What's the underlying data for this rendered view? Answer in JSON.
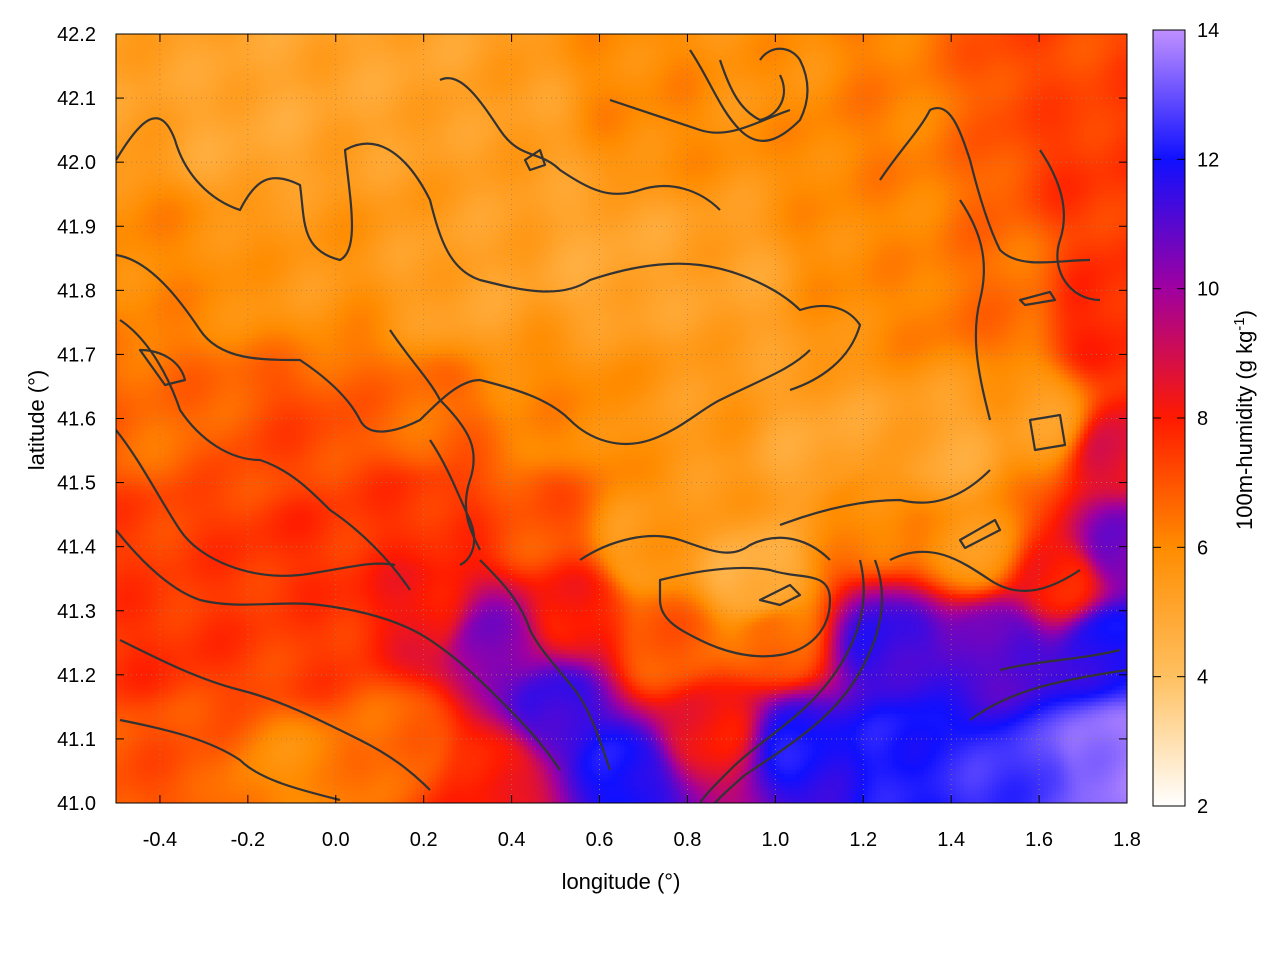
{
  "chart_data": {
    "type": "heatmap",
    "title": "",
    "xlabel": "longitude (°)",
    "ylabel": "latitude (°)",
    "colorbar_label": "100m-humidity (g kg",
    "colorbar_label_superscript": "-1",
    "colorbar_label_suffix": ")",
    "xlim": [
      -0.5,
      1.8
    ],
    "ylim": [
      41.0,
      42.2
    ],
    "x_ticks": [
      "-0.4",
      "-0.2",
      "0.0",
      "0.2",
      "0.4",
      "0.6",
      "0.8",
      "1.0",
      "1.2",
      "1.4",
      "1.6",
      "1.8"
    ],
    "x_tick_values": [
      -0.4,
      -0.2,
      0.0,
      0.2,
      0.4,
      0.6,
      0.8,
      1.0,
      1.2,
      1.4,
      1.6,
      1.8
    ],
    "y_ticks": [
      "41.0",
      "41.1",
      "41.2",
      "41.3",
      "41.4",
      "41.5",
      "41.6",
      "41.7",
      "41.8",
      "41.9",
      "42.0",
      "42.1",
      "42.2"
    ],
    "y_tick_values": [
      41.0,
      41.1,
      41.2,
      41.3,
      41.4,
      41.5,
      41.6,
      41.7,
      41.8,
      41.9,
      42.0,
      42.1,
      42.2
    ],
    "colorbar_ticks": [
      "2",
      "4",
      "6",
      "8",
      "10",
      "12",
      "14"
    ],
    "colorbar_tick_values": [
      2,
      4,
      6,
      8,
      10,
      12,
      14
    ],
    "colorbar_range": [
      2,
      14
    ],
    "colormap": [
      {
        "value": 2,
        "color": "#ffffff"
      },
      {
        "value": 4,
        "color": "#ffc060"
      },
      {
        "value": 6,
        "color": "#ff8c00"
      },
      {
        "value": 8,
        "color": "#ff1a00"
      },
      {
        "value": 10,
        "color": "#a000a0"
      },
      {
        "value": 12,
        "color": "#1010ff"
      },
      {
        "value": 14,
        "color": "#c090ff"
      }
    ],
    "grid": true,
    "contour_color": "#333333",
    "field_anchors": [
      {
        "lon": -0.45,
        "lat": 42.15,
        "h": 5.2
      },
      {
        "lon": -0.2,
        "lat": 42.05,
        "h": 5.0
      },
      {
        "lon": 0.1,
        "lat": 42.15,
        "h": 5.1
      },
      {
        "lon": 0.4,
        "lat": 42.05,
        "h": 5.3
      },
      {
        "lon": 0.7,
        "lat": 42.1,
        "h": 6.0
      },
      {
        "lon": 0.95,
        "lat": 42.15,
        "h": 5.8
      },
      {
        "lon": 1.25,
        "lat": 42.1,
        "h": 6.2
      },
      {
        "lon": 1.6,
        "lat": 42.15,
        "h": 7.2
      },
      {
        "lon": 1.75,
        "lat": 42.0,
        "h": 7.5
      },
      {
        "lon": -0.4,
        "lat": 41.85,
        "h": 6.0
      },
      {
        "lon": -0.1,
        "lat": 41.85,
        "h": 5.6
      },
      {
        "lon": 0.3,
        "lat": 41.8,
        "h": 5.2
      },
      {
        "lon": 0.6,
        "lat": 41.85,
        "h": 5.0
      },
      {
        "lon": 0.9,
        "lat": 41.8,
        "h": 5.2
      },
      {
        "lon": 1.2,
        "lat": 41.85,
        "h": 6.0
      },
      {
        "lon": 1.5,
        "lat": 41.8,
        "h": 6.5
      },
      {
        "lon": 1.75,
        "lat": 41.75,
        "h": 7.8
      },
      {
        "lon": -0.4,
        "lat": 41.6,
        "h": 6.6
      },
      {
        "lon": -0.1,
        "lat": 41.55,
        "h": 7.2
      },
      {
        "lon": 0.2,
        "lat": 41.6,
        "h": 6.6
      },
      {
        "lon": 0.5,
        "lat": 41.6,
        "h": 6.0
      },
      {
        "lon": 0.8,
        "lat": 41.6,
        "h": 5.5
      },
      {
        "lon": 1.1,
        "lat": 41.55,
        "h": 5.0
      },
      {
        "lon": 1.4,
        "lat": 41.55,
        "h": 5.0
      },
      {
        "lon": 1.6,
        "lat": 41.6,
        "h": 5.4
      },
      {
        "lon": 1.78,
        "lat": 41.55,
        "h": 8.6
      },
      {
        "lon": -0.4,
        "lat": 41.4,
        "h": 7.4
      },
      {
        "lon": -0.1,
        "lat": 41.4,
        "h": 7.6
      },
      {
        "lon": 0.2,
        "lat": 41.45,
        "h": 7.6
      },
      {
        "lon": 0.45,
        "lat": 41.45,
        "h": 7.0
      },
      {
        "lon": 0.7,
        "lat": 41.4,
        "h": 5.5
      },
      {
        "lon": 0.95,
        "lat": 41.35,
        "h": 4.6
      },
      {
        "lon": 1.2,
        "lat": 41.45,
        "h": 6.0
      },
      {
        "lon": 1.45,
        "lat": 41.4,
        "h": 5.6
      },
      {
        "lon": 1.65,
        "lat": 41.35,
        "h": 8.0
      },
      {
        "lon": 1.78,
        "lat": 41.4,
        "h": 10.5
      },
      {
        "lon": -0.4,
        "lat": 41.25,
        "h": 7.6
      },
      {
        "lon": -0.1,
        "lat": 41.25,
        "h": 7.4
      },
      {
        "lon": 0.2,
        "lat": 41.3,
        "h": 8.2
      },
      {
        "lon": 0.35,
        "lat": 41.25,
        "h": 10.4
      },
      {
        "lon": 0.55,
        "lat": 41.3,
        "h": 8.0
      },
      {
        "lon": 0.75,
        "lat": 41.25,
        "h": 6.8
      },
      {
        "lon": 1.0,
        "lat": 41.25,
        "h": 6.6
      },
      {
        "lon": 1.25,
        "lat": 41.25,
        "h": 11.5
      },
      {
        "lon": 1.5,
        "lat": 41.25,
        "h": 11.0
      },
      {
        "lon": 1.75,
        "lat": 41.25,
        "h": 11.8
      },
      {
        "lon": -0.4,
        "lat": 41.08,
        "h": 7.0
      },
      {
        "lon": -0.1,
        "lat": 41.05,
        "h": 6.0
      },
      {
        "lon": 0.15,
        "lat": 41.1,
        "h": 6.6
      },
      {
        "lon": 0.35,
        "lat": 41.05,
        "h": 8.0
      },
      {
        "lon": 0.5,
        "lat": 41.15,
        "h": 11.5
      },
      {
        "lon": 0.65,
        "lat": 41.05,
        "h": 12.0
      },
      {
        "lon": 0.85,
        "lat": 41.12,
        "h": 8.2
      },
      {
        "lon": 1.05,
        "lat": 41.1,
        "h": 12.0
      },
      {
        "lon": 1.3,
        "lat": 41.08,
        "h": 12.2
      },
      {
        "lon": 1.55,
        "lat": 41.05,
        "h": 12.6
      },
      {
        "lon": 1.75,
        "lat": 41.08,
        "h": 13.6
      }
    ]
  }
}
